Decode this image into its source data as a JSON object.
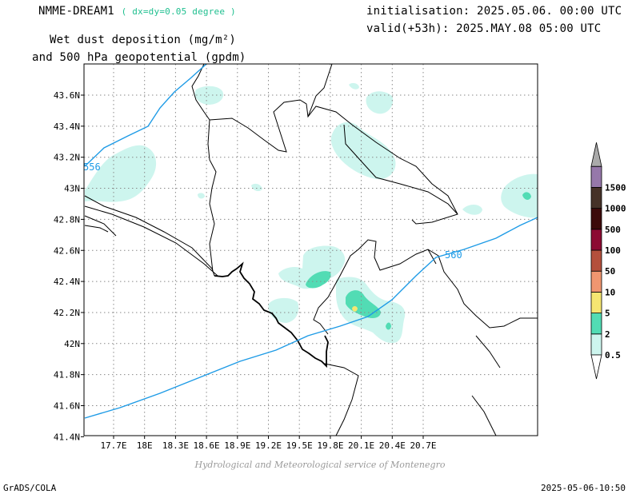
{
  "header": {
    "model": "NMME-DREAM1",
    "resolution": "( dx=dy=0.05 degree )",
    "init": "initialisation: 2025.05.06. 00:00 UTC",
    "valid": "valid(+53h): 2025.MAY.08 05:00 UTC",
    "title_line1": "Wet dust deposition (mg/m²)",
    "title_line2": "and 500 hPa geopotential (gpdm)"
  },
  "map": {
    "lon_ticks": [
      "17.7E",
      "18E",
      "18.3E",
      "18.6E",
      "18.9E",
      "19.2E",
      "19.5E",
      "19.8E",
      "20.1E",
      "20.4E",
      "20.7E"
    ],
    "lat_ticks": [
      "43.6N",
      "43.4N",
      "43.2N",
      "43N",
      "42.8N",
      "42.6N",
      "42.4N",
      "42.2N",
      "42N",
      "41.8N",
      "41.6N",
      "41.4N"
    ],
    "contour_labels": [
      "556",
      "560"
    ],
    "contour_color": "#1e9be6",
    "grid": true
  },
  "legend": {
    "levels": [
      "0.5",
      "2",
      "5",
      "10",
      "50",
      "100",
      "500",
      "1000",
      "1500"
    ],
    "colors": [
      "#cdf5ee",
      "#52dcb4",
      "#f5e672",
      "#f09670",
      "#b4503c",
      "#8c0a32",
      "#3c0a0a",
      "#463228",
      "#9678aa",
      "#aaaaaa"
    ]
  },
  "footer": {
    "credit": "Hydrological and Meteorological service of Montenegro",
    "software": "GrADS/COLA",
    "timestamp": "2025-05-06-10:50"
  }
}
